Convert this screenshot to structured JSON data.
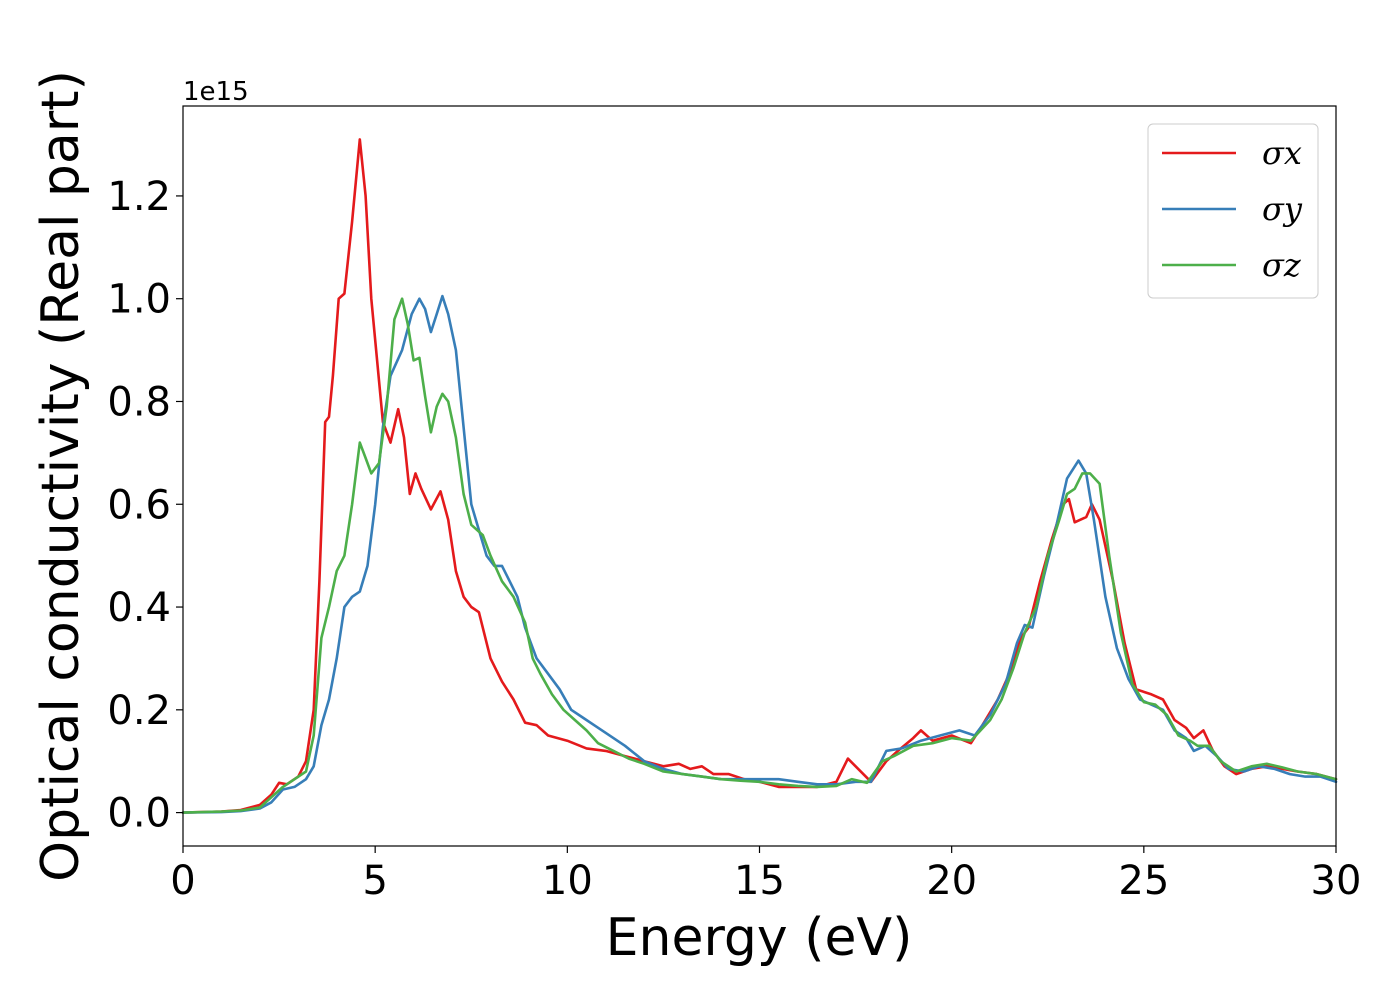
{
  "chart_data": {
    "type": "line",
    "xlabel": "Energy (eV)",
    "ylabel": "Optical conductivity (Real part)",
    "y_offset_label": "1e15",
    "xlim": [
      0,
      30
    ],
    "ylim": [
      -0.065,
      1.375
    ],
    "x_ticks": [
      0,
      5,
      10,
      15,
      20,
      25,
      30
    ],
    "x_tick_labels": [
      "0",
      "5",
      "10",
      "15",
      "20",
      "25",
      "30"
    ],
    "y_ticks": [
      0.0,
      0.2,
      0.4,
      0.6,
      0.8,
      1.0,
      1.2
    ],
    "y_tick_labels": [
      "0.0",
      "0.2",
      "0.4",
      "0.6",
      "0.8",
      "1.0",
      "1.2"
    ],
    "grid": false,
    "legend_position": "top-right",
    "series": [
      {
        "name": "σx",
        "color": "#e41a1c",
        "points": [
          [
            0,
            0
          ],
          [
            1,
            0.002
          ],
          [
            1.5,
            0.005
          ],
          [
            2,
            0.015
          ],
          [
            2.3,
            0.035
          ],
          [
            2.5,
            0.058
          ],
          [
            2.7,
            0.055
          ],
          [
            3,
            0.07
          ],
          [
            3.2,
            0.1
          ],
          [
            3.4,
            0.2
          ],
          [
            3.55,
            0.45
          ],
          [
            3.7,
            0.76
          ],
          [
            3.8,
            0.77
          ],
          [
            3.9,
            0.85
          ],
          [
            4.05,
            1.0
          ],
          [
            4.2,
            1.01
          ],
          [
            4.4,
            1.15
          ],
          [
            4.6,
            1.31
          ],
          [
            4.75,
            1.2
          ],
          [
            4.9,
            1.0
          ],
          [
            5.05,
            0.88
          ],
          [
            5.2,
            0.76
          ],
          [
            5.4,
            0.72
          ],
          [
            5.6,
            0.785
          ],
          [
            5.75,
            0.73
          ],
          [
            5.9,
            0.62
          ],
          [
            6.05,
            0.66
          ],
          [
            6.2,
            0.63
          ],
          [
            6.45,
            0.59
          ],
          [
            6.7,
            0.625
          ],
          [
            6.9,
            0.57
          ],
          [
            7.1,
            0.47
          ],
          [
            7.3,
            0.42
          ],
          [
            7.5,
            0.4
          ],
          [
            7.7,
            0.39
          ],
          [
            8,
            0.3
          ],
          [
            8.3,
            0.255
          ],
          [
            8.6,
            0.22
          ],
          [
            8.9,
            0.175
          ],
          [
            9.2,
            0.17
          ],
          [
            9.5,
            0.15
          ],
          [
            10,
            0.14
          ],
          [
            10.5,
            0.125
          ],
          [
            11,
            0.12
          ],
          [
            11.5,
            0.11
          ],
          [
            12,
            0.1
          ],
          [
            12.5,
            0.09
          ],
          [
            12.9,
            0.095
          ],
          [
            13.2,
            0.085
          ],
          [
            13.5,
            0.09
          ],
          [
            13.8,
            0.075
          ],
          [
            14.2,
            0.075
          ],
          [
            14.6,
            0.065
          ],
          [
            15,
            0.06
          ],
          [
            15.5,
            0.05
          ],
          [
            16,
            0.05
          ],
          [
            16.5,
            0.05
          ],
          [
            17,
            0.06
          ],
          [
            17.3,
            0.105
          ],
          [
            17.5,
            0.09
          ],
          [
            17.9,
            0.06
          ],
          [
            18.3,
            0.1
          ],
          [
            18.6,
            0.12
          ],
          [
            19,
            0.145
          ],
          [
            19.2,
            0.16
          ],
          [
            19.5,
            0.14
          ],
          [
            20,
            0.15
          ],
          [
            20.5,
            0.135
          ],
          [
            20.8,
            0.17
          ],
          [
            21.2,
            0.22
          ],
          [
            21.5,
            0.27
          ],
          [
            21.8,
            0.34
          ],
          [
            22,
            0.36
          ],
          [
            22.3,
            0.45
          ],
          [
            22.6,
            0.53
          ],
          [
            22.9,
            0.6
          ],
          [
            23.05,
            0.61
          ],
          [
            23.2,
            0.565
          ],
          [
            23.5,
            0.575
          ],
          [
            23.65,
            0.6
          ],
          [
            23.85,
            0.57
          ],
          [
            24.2,
            0.45
          ],
          [
            24.5,
            0.33
          ],
          [
            24.8,
            0.24
          ],
          [
            25.2,
            0.23
          ],
          [
            25.5,
            0.22
          ],
          [
            25.8,
            0.18
          ],
          [
            26.1,
            0.165
          ],
          [
            26.3,
            0.145
          ],
          [
            26.55,
            0.16
          ],
          [
            26.8,
            0.12
          ],
          [
            27.1,
            0.09
          ],
          [
            27.4,
            0.075
          ],
          [
            27.8,
            0.085
          ],
          [
            28.2,
            0.09
          ],
          [
            28.6,
            0.085
          ],
          [
            29,
            0.08
          ],
          [
            29.5,
            0.075
          ],
          [
            30,
            0.065
          ]
        ]
      },
      {
        "name": "σy",
        "color": "#377eb8",
        "points": [
          [
            0,
            0
          ],
          [
            1,
            0.001
          ],
          [
            1.5,
            0.003
          ],
          [
            2,
            0.008
          ],
          [
            2.3,
            0.02
          ],
          [
            2.6,
            0.045
          ],
          [
            2.9,
            0.05
          ],
          [
            3.2,
            0.065
          ],
          [
            3.4,
            0.09
          ],
          [
            3.6,
            0.17
          ],
          [
            3.8,
            0.22
          ],
          [
            4,
            0.3
          ],
          [
            4.2,
            0.4
          ],
          [
            4.4,
            0.42
          ],
          [
            4.6,
            0.43
          ],
          [
            4.8,
            0.48
          ],
          [
            5.0,
            0.6
          ],
          [
            5.2,
            0.75
          ],
          [
            5.4,
            0.85
          ],
          [
            5.7,
            0.9
          ],
          [
            5.95,
            0.97
          ],
          [
            6.15,
            1.0
          ],
          [
            6.3,
            0.98
          ],
          [
            6.45,
            0.935
          ],
          [
            6.6,
            0.97
          ],
          [
            6.75,
            1.005
          ],
          [
            6.9,
            0.97
          ],
          [
            7.1,
            0.9
          ],
          [
            7.3,
            0.75
          ],
          [
            7.5,
            0.6
          ],
          [
            7.7,
            0.55
          ],
          [
            7.9,
            0.5
          ],
          [
            8.1,
            0.48
          ],
          [
            8.3,
            0.48
          ],
          [
            8.5,
            0.45
          ],
          [
            8.7,
            0.42
          ],
          [
            8.9,
            0.36
          ],
          [
            9.2,
            0.3
          ],
          [
            9.5,
            0.27
          ],
          [
            9.8,
            0.24
          ],
          [
            10.1,
            0.2
          ],
          [
            10.4,
            0.185
          ],
          [
            10.7,
            0.17
          ],
          [
            11,
            0.155
          ],
          [
            11.5,
            0.13
          ],
          [
            12,
            0.1
          ],
          [
            12.5,
            0.085
          ],
          [
            13,
            0.075
          ],
          [
            13.5,
            0.07
          ],
          [
            14,
            0.065
          ],
          [
            14.5,
            0.065
          ],
          [
            15,
            0.065
          ],
          [
            15.5,
            0.065
          ],
          [
            16,
            0.06
          ],
          [
            16.5,
            0.055
          ],
          [
            17,
            0.055
          ],
          [
            17.5,
            0.06
          ],
          [
            17.9,
            0.06
          ],
          [
            18.3,
            0.12
          ],
          [
            18.7,
            0.125
          ],
          [
            19.2,
            0.14
          ],
          [
            19.7,
            0.15
          ],
          [
            20.2,
            0.16
          ],
          [
            20.6,
            0.15
          ],
          [
            21,
            0.19
          ],
          [
            21.4,
            0.25
          ],
          [
            21.7,
            0.33
          ],
          [
            21.9,
            0.365
          ],
          [
            22.1,
            0.36
          ],
          [
            22.4,
            0.46
          ],
          [
            22.7,
            0.55
          ],
          [
            23.0,
            0.65
          ],
          [
            23.3,
            0.685
          ],
          [
            23.5,
            0.66
          ],
          [
            23.7,
            0.57
          ],
          [
            24,
            0.42
          ],
          [
            24.3,
            0.32
          ],
          [
            24.6,
            0.26
          ],
          [
            24.9,
            0.22
          ],
          [
            25.2,
            0.21
          ],
          [
            25.5,
            0.2
          ],
          [
            25.8,
            0.16
          ],
          [
            26.1,
            0.145
          ],
          [
            26.3,
            0.12
          ],
          [
            26.6,
            0.13
          ],
          [
            26.9,
            0.11
          ],
          [
            27.2,
            0.085
          ],
          [
            27.6,
            0.08
          ],
          [
            28,
            0.09
          ],
          [
            28.4,
            0.085
          ],
          [
            28.8,
            0.075
          ],
          [
            29.2,
            0.07
          ],
          [
            29.6,
            0.07
          ],
          [
            30,
            0.06
          ]
        ]
      },
      {
        "name": "σz",
        "color": "#4daf4a",
        "points": [
          [
            0,
            0
          ],
          [
            1,
            0.002
          ],
          [
            1.5,
            0.004
          ],
          [
            2,
            0.01
          ],
          [
            2.3,
            0.03
          ],
          [
            2.6,
            0.05
          ],
          [
            2.9,
            0.065
          ],
          [
            3.2,
            0.08
          ],
          [
            3.4,
            0.15
          ],
          [
            3.6,
            0.34
          ],
          [
            3.8,
            0.4
          ],
          [
            4.0,
            0.47
          ],
          [
            4.2,
            0.5
          ],
          [
            4.4,
            0.6
          ],
          [
            4.6,
            0.72
          ],
          [
            4.75,
            0.69
          ],
          [
            4.9,
            0.66
          ],
          [
            5.1,
            0.68
          ],
          [
            5.3,
            0.79
          ],
          [
            5.5,
            0.96
          ],
          [
            5.7,
            1.0
          ],
          [
            5.85,
            0.95
          ],
          [
            6.0,
            0.88
          ],
          [
            6.15,
            0.885
          ],
          [
            6.3,
            0.81
          ],
          [
            6.45,
            0.74
          ],
          [
            6.6,
            0.79
          ],
          [
            6.75,
            0.815
          ],
          [
            6.9,
            0.8
          ],
          [
            7.1,
            0.73
          ],
          [
            7.3,
            0.62
          ],
          [
            7.5,
            0.56
          ],
          [
            7.8,
            0.54
          ],
          [
            8.0,
            0.5
          ],
          [
            8.3,
            0.45
          ],
          [
            8.6,
            0.42
          ],
          [
            8.9,
            0.37
          ],
          [
            9.1,
            0.3
          ],
          [
            9.3,
            0.27
          ],
          [
            9.6,
            0.23
          ],
          [
            9.9,
            0.2
          ],
          [
            10.2,
            0.18
          ],
          [
            10.5,
            0.16
          ],
          [
            10.8,
            0.135
          ],
          [
            11.2,
            0.12
          ],
          [
            11.6,
            0.105
          ],
          [
            12,
            0.095
          ],
          [
            12.5,
            0.08
          ],
          [
            13,
            0.075
          ],
          [
            13.5,
            0.07
          ],
          [
            14,
            0.065
          ],
          [
            14.5,
            0.062
          ],
          [
            15,
            0.06
          ],
          [
            15.5,
            0.055
          ],
          [
            16,
            0.052
          ],
          [
            16.5,
            0.05
          ],
          [
            17,
            0.052
          ],
          [
            17.4,
            0.065
          ],
          [
            17.8,
            0.058
          ],
          [
            18.2,
            0.1
          ],
          [
            18.5,
            0.11
          ],
          [
            19,
            0.13
          ],
          [
            19.5,
            0.135
          ],
          [
            20,
            0.145
          ],
          [
            20.5,
            0.14
          ],
          [
            21,
            0.18
          ],
          [
            21.3,
            0.22
          ],
          [
            21.6,
            0.28
          ],
          [
            21.9,
            0.35
          ],
          [
            22.2,
            0.4
          ],
          [
            22.5,
            0.5
          ],
          [
            22.8,
            0.57
          ],
          [
            23.0,
            0.62
          ],
          [
            23.2,
            0.63
          ],
          [
            23.4,
            0.66
          ],
          [
            23.6,
            0.66
          ],
          [
            23.85,
            0.64
          ],
          [
            24.1,
            0.5
          ],
          [
            24.4,
            0.35
          ],
          [
            24.7,
            0.25
          ],
          [
            25,
            0.215
          ],
          [
            25.3,
            0.21
          ],
          [
            25.6,
            0.19
          ],
          [
            25.9,
            0.15
          ],
          [
            26.2,
            0.14
          ],
          [
            26.4,
            0.13
          ],
          [
            26.7,
            0.13
          ],
          [
            27.0,
            0.1
          ],
          [
            27.4,
            0.08
          ],
          [
            27.8,
            0.09
          ],
          [
            28.2,
            0.095
          ],
          [
            28.6,
            0.088
          ],
          [
            29,
            0.08
          ],
          [
            29.5,
            0.075
          ],
          [
            30,
            0.065
          ]
        ]
      }
    ]
  }
}
